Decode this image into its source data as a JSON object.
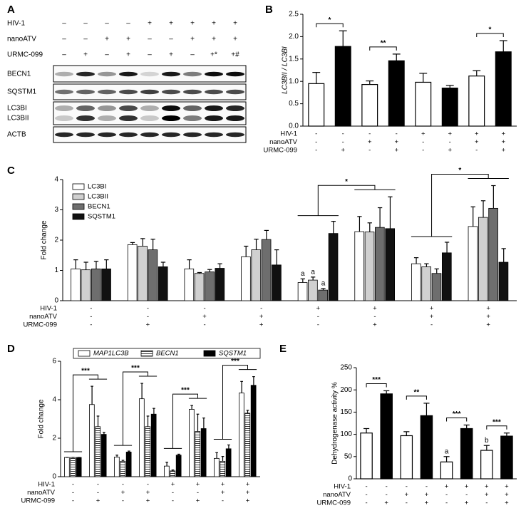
{
  "blot": {
    "panel_label": "A",
    "conditions": [
      {
        "name": "HIV-1",
        "signs": [
          "–",
          "–",
          "–",
          "–",
          "+",
          "+",
          "+",
          "+",
          "+"
        ]
      },
      {
        "name": "nanoATV",
        "signs": [
          "–",
          "–",
          "+",
          "+",
          "–",
          "–",
          "+",
          "+",
          "+"
        ]
      },
      {
        "name": "URMC-099",
        "signs": [
          "–",
          "+",
          "–",
          "+",
          "–",
          "+",
          "–",
          "+*",
          "+#"
        ]
      }
    ],
    "bands": [
      "BECN1",
      "SQSTM1",
      "LC3BI",
      "LC3BII",
      "ACTB"
    ]
  },
  "chart_data": [
    {
      "type": "bar",
      "panel_label": "B",
      "ylabel": "LC3BII / LC3BI",
      "ylabel_style": "italic",
      "values": [
        0.95,
        1.78,
        0.93,
        1.46,
        0.98,
        0.85,
        1.12,
        1.66
      ],
      "errors": [
        0.25,
        0.35,
        0.08,
        0.15,
        0.2,
        0.06,
        0.12,
        0.25
      ],
      "colors": [
        "#ffffff",
        "#000000",
        "#ffffff",
        "#000000",
        "#ffffff",
        "#000000",
        "#ffffff",
        "#000000"
      ],
      "ylim": [
        0,
        2.5
      ],
      "yticks": [
        {
          "value": 0,
          "label": "0.0"
        },
        0.5,
        {
          "value": 1,
          "label": "1.0"
        },
        1.5,
        {
          "value": 2,
          "label": "2.0"
        },
        2.5
      ],
      "annotations": [
        "*",
        "**",
        "*"
      ],
      "conditions": [
        {
          "name": "HIV-1",
          "signs": [
            "-",
            "-",
            "-",
            "-",
            "+",
            "+",
            "+",
            "+"
          ]
        },
        {
          "name": "nanoATV",
          "signs": [
            "-",
            "-",
            "+",
            "+",
            "-",
            "-",
            "+",
            "+"
          ]
        },
        {
          "name": "URMC-099",
          "signs": [
            "-",
            "+",
            "-",
            "+",
            "-",
            "+",
            "-",
            "+"
          ]
        }
      ]
    },
    {
      "type": "grouped_bar",
      "panel_label": "C",
      "ylabel": "Fold change",
      "series": [
        {
          "name": "LC3BI",
          "color": "#ffffff",
          "values": [
            1.05,
            1.85,
            1.05,
            1.45,
            0.6,
            2.28,
            1.22,
            2.45
          ],
          "errors": [
            0.3,
            0.07,
            0.3,
            0.35,
            0.12,
            0.5,
            0.2,
            0.65
          ]
        },
        {
          "name": "LC3BII",
          "color": "#d0d0d0",
          "values": [
            1.02,
            1.8,
            0.9,
            1.68,
            0.68,
            2.27,
            1.12,
            2.75
          ],
          "errors": [
            0.25,
            0.25,
            0.03,
            0.35,
            0.1,
            0.3,
            0.1,
            0.55
          ]
        },
        {
          "name": "BECN1",
          "color": "#6e6e6e",
          "values": [
            1.05,
            1.68,
            0.95,
            2.02,
            0.35,
            2.42,
            0.9,
            3.05
          ],
          "errors": [
            0.25,
            0.35,
            0.08,
            0.3,
            0.05,
            0.65,
            0.15,
            0.75
          ]
        },
        {
          "name": "SQSTM1",
          "color": "#111111",
          "values": [
            1.05,
            1.12,
            1.07,
            1.18,
            2.22,
            2.38,
            1.58,
            1.27
          ],
          "errors": [
            0.3,
            0.15,
            0.15,
            0.5,
            0.4,
            1.05,
            0.35,
            0.45
          ]
        }
      ],
      "ylim": [
        0,
        4
      ],
      "yticks": [
        0,
        1,
        2,
        3,
        4
      ],
      "annotations": [
        "*",
        "*"
      ],
      "letters": [
        "a",
        "a",
        "a"
      ],
      "conditions": [
        {
          "name": "HIV-1",
          "signs": [
            "-",
            "-",
            "-",
            "-",
            "+",
            "+",
            "+",
            "+"
          ]
        },
        {
          "name": "nanoATV",
          "signs": [
            "-",
            "-",
            "+",
            "+",
            "-",
            "-",
            "+",
            "+"
          ]
        },
        {
          "name": "URMC-099",
          "signs": [
            "-",
            "+",
            "-",
            "+",
            "-",
            "+",
            "-",
            "+"
          ]
        }
      ]
    },
    {
      "type": "grouped_bar",
      "panel_label": "D",
      "ylabel": "Fold change",
      "legend_style": "italic",
      "series": [
        {
          "name": "MAP1LC3B",
          "color": "#ffffff",
          "values": [
            1,
            3.75,
            1.02,
            4.05,
            0.55,
            3.5,
            0.95,
            4.35
          ],
          "errors": [
            0,
            0.95,
            0.1,
            0.8,
            0.2,
            0.2,
            0.3,
            0.6
          ]
        },
        {
          "name": "BECN1",
          "color": "#ffffff",
          "hatch": "horizontal",
          "values": [
            1,
            2.6,
            0.8,
            2.6,
            0.3,
            2.35,
            0.8,
            3.3
          ],
          "errors": [
            0,
            0.55,
            0.05,
            0.55,
            0.05,
            0.9,
            0.25,
            0.15
          ]
        },
        {
          "name": "SQSTM1",
          "color": "#000000",
          "values": [
            1,
            2.2,
            1.28,
            3.25,
            1.12,
            2.5,
            1.45,
            4.75
          ],
          "errors": [
            0,
            0.1,
            0.05,
            0.3,
            0.05,
            0.55,
            0.2,
            0.45
          ]
        }
      ],
      "ylim": [
        0,
        6
      ],
      "yticks": [
        0,
        2,
        4,
        6
      ],
      "annotations": [
        "***",
        "***",
        "***",
        "***"
      ],
      "conditions": [
        {
          "name": "HIV-1",
          "signs": [
            "-",
            "-",
            "-",
            "-",
            "+",
            "+",
            "+",
            "+"
          ]
        },
        {
          "name": "nanoATV",
          "signs": [
            "-",
            "-",
            "+",
            "+",
            "-",
            "-",
            "+",
            "+"
          ]
        },
        {
          "name": "URMC-099",
          "signs": [
            "-",
            "+",
            "-",
            "+",
            "-",
            "+",
            "-",
            "+"
          ]
        }
      ]
    },
    {
      "type": "bar",
      "panel_label": "E",
      "ylabel": "Dehydrogenase activity %",
      "values": [
        103,
        191,
        97,
        142,
        38,
        113,
        64,
        96
      ],
      "errors": [
        10,
        7,
        9,
        28,
        12,
        8,
        11,
        7
      ],
      "colors": [
        "#ffffff",
        "#000000",
        "#ffffff",
        "#000000",
        "#ffffff",
        "#000000",
        "#ffffff",
        "#000000"
      ],
      "ylim": [
        0,
        250
      ],
      "yticks": [
        0,
        50,
        100,
        150,
        200,
        250
      ],
      "annotations": [
        "***",
        "**",
        "***",
        "***"
      ],
      "letters": [
        "a",
        "b"
      ],
      "conditions": [
        {
          "name": "HIV-1",
          "signs": [
            "-",
            "-",
            "-",
            "-",
            "+",
            "+",
            "+",
            "+"
          ]
        },
        {
          "name": "nanoATV",
          "signs": [
            "-",
            "-",
            "+",
            "+",
            "-",
            "-",
            "+",
            "+"
          ]
        },
        {
          "name": "URMC-099",
          "signs": [
            "-",
            "+",
            "-",
            "+",
            "-",
            "+",
            "-",
            "+"
          ]
        }
      ]
    }
  ]
}
